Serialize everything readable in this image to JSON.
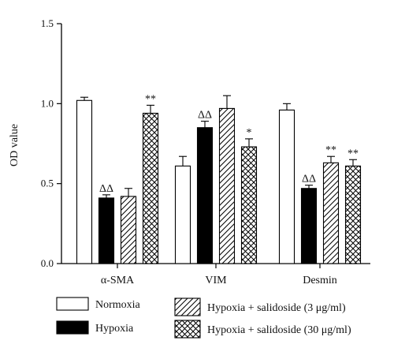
{
  "chart_data": {
    "type": "bar",
    "ylabel": "OD value",
    "xlabel": "",
    "ylim": [
      0,
      1.5
    ],
    "yticks": [
      "0.0",
      "0.5",
      "1.0",
      "1.5"
    ],
    "ytick_values": [
      0,
      0.5,
      1.0,
      1.5
    ],
    "categories": [
      "α-SMA",
      "VIM",
      "Desmin"
    ],
    "series": [
      {
        "name": "Normoxia",
        "pattern": "empty",
        "values": [
          1.02,
          0.61,
          0.96
        ],
        "errors": [
          0.02,
          0.06,
          0.04
        ],
        "sig": [
          "",
          "",
          ""
        ]
      },
      {
        "name": "Hypoxia",
        "pattern": "solid",
        "values": [
          0.41,
          0.85,
          0.47
        ],
        "errors": [
          0.02,
          0.04,
          0.02
        ],
        "sig": [
          "ΔΔ",
          "ΔΔ",
          "ΔΔ"
        ]
      },
      {
        "name": "Hypoxia + salidoside (3 μg/ml)",
        "pattern": "diagonal",
        "values": [
          0.42,
          0.97,
          0.63
        ],
        "errors": [
          0.05,
          0.08,
          0.04
        ],
        "sig": [
          "",
          "",
          "**"
        ]
      },
      {
        "name": "Hypoxia + salidoside (30 μg/ml)",
        "pattern": "crosshatch",
        "values": [
          0.94,
          0.73,
          0.61
        ],
        "errors": [
          0.05,
          0.05,
          0.04
        ],
        "sig": [
          "**",
          "*",
          "**"
        ]
      }
    ],
    "colors": {
      "bar_stroke": "#000000",
      "solid_fill": "#000000",
      "background": "#ffffff"
    }
  }
}
